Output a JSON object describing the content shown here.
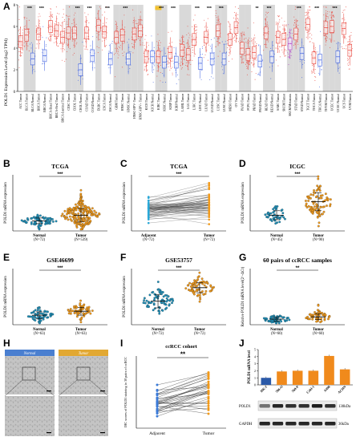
{
  "panels": {
    "A": {
      "label": "A",
      "ylabel": "POLD1 Expression Level (log2 TPM)"
    },
    "B": {
      "label": "B",
      "title": "TCGA",
      "ylabel": "POLD1 mRNA expression"
    },
    "C": {
      "label": "C",
      "title": "TCGA",
      "ylabel": "POLD1 mRNA expression"
    },
    "D": {
      "label": "D",
      "title": "ICGC",
      "ylabel": "POLD1 mRNA expression"
    },
    "E": {
      "label": "E",
      "title": "GSE46699",
      "ylabel": "POLD1 mRNA expression"
    },
    "F": {
      "label": "F",
      "title": "GSE53757",
      "ylabel": "POLD1 mRNA expression"
    },
    "G": {
      "label": "G",
      "title": "60 pairs of ccRCC samples",
      "ylabel": "Relative POLD1 mRNA level(2^-ΔCt)"
    },
    "H": {
      "label": "H",
      "normal": "Normal",
      "tumor": "Tumor"
    },
    "I": {
      "label": "I",
      "title": "ccRCC cohort",
      "ylabel": "IHC scores of POLD1 staining in 30 pairs of ccRCC"
    },
    "J": {
      "label": "J",
      "ylabel": "POLD1 mRNA level",
      "kda130": "130kDa",
      "kda36": "36kDa"
    }
  },
  "colors": {
    "tumor_red": "#e8453c",
    "normal_blue": "#3c5fe0",
    "adjacent_cyan": "#2aa8d8",
    "tumor_orange": "#f29a1a",
    "dot_teal": "#1e8fb8",
    "bar_orange": "#f08a1c",
    "bar_blue": "#2b5aa8",
    "shade": "#d9d9d9",
    "skcm_purple": "#b040c8"
  },
  "chart_data": [
    {
      "panel": "A",
      "type": "box",
      "ylabel": "POLD1 Expression Level (log2 TPM)",
      "ylim": [
        0,
        8
      ],
      "categories": [
        "ACC.Tumor",
        "BLCA.Tumor",
        "BLCA.Normal",
        "BRCA.Tumor",
        "BRCA.Normal",
        "BRCA-Basal.Tumor",
        "BRCA-Her2.Tumor",
        "BRCA-Luminal.Tumor",
        "CESC.Tumor",
        "CHOL.Tumor",
        "CHOL.Normal",
        "COAD.Tumor",
        "COAD.Normal",
        "DLBC.Tumor",
        "ESCA.Tumor",
        "ESCA.Normal",
        "GBM.Tumor",
        "HNSC.Tumor",
        "HNSC.Normal",
        "HNSC-HPV-.Tumor",
        "HNSC-HPV+.Tumor",
        "KICH.Tumor",
        "KICH.Normal",
        "KIRC.Tumor",
        "KIRC.Normal",
        "KIRP.Tumor",
        "KIRP.Normal",
        "LAML.Tumor",
        "LGG.Tumor",
        "LIHC.Tumor",
        "LIHC.Normal",
        "LUAD.Tumor",
        "LUAD.Normal",
        "LUSC.Tumor",
        "LUSC.Normal",
        "MESO.Tumor",
        "OV.Tumor",
        "PAAD.Tumor",
        "PCPG.Tumor",
        "PRAD.Tumor",
        "PRAD.Normal",
        "READ.Tumor",
        "READ.Normal",
        "SARC.Tumor",
        "SKCM.Tumor",
        "SKCM.Metastasis",
        "STAD.Tumor",
        "STAD.Normal",
        "TGCT.Tumor",
        "THCA.Tumor",
        "THCA.Normal",
        "THYM.Tumor",
        "UCEC.Tumor",
        "UCEC.Normal",
        "UCS.Tumor",
        "UVM.Tumor"
      ],
      "medians": [
        4.6,
        5.2,
        3.0,
        5.3,
        3.3,
        6.0,
        5.6,
        5.0,
        5.4,
        5.4,
        2.0,
        5.4,
        3.3,
        6.1,
        5.5,
        3.0,
        5.0,
        5.2,
        3.0,
        5.3,
        5.6,
        3.2,
        3.2,
        3.2,
        2.7,
        3.6,
        2.7,
        3.8,
        3.4,
        4.8,
        2.6,
        5.0,
        3.0,
        5.6,
        3.0,
        4.8,
        5.9,
        4.0,
        3.4,
        3.6,
        2.8,
        5.4,
        3.2,
        5.0,
        4.8,
        4.4,
        5.3,
        3.5,
        6.2,
        3.1,
        2.9,
        5.9,
        6.0,
        3.2,
        5.8,
        3.8
      ],
      "significance": [
        "",
        "***",
        "",
        "***",
        "",
        "",
        "",
        "",
        "",
        "***",
        "",
        "***",
        "",
        "",
        "***",
        "",
        "",
        "***",
        "",
        "",
        "",
        "",
        "",
        "***",
        "",
        "***",
        "",
        "",
        "",
        "***",
        "",
        "***",
        "",
        "***",
        "",
        "",
        "",
        "",
        "",
        "**",
        "",
        "***",
        "",
        "",
        "",
        "",
        "***",
        "",
        "",
        "***",
        "",
        "",
        "***",
        "",
        "",
        ""
      ],
      "highlight": "KIRC.Tumor"
    },
    {
      "panel": "B",
      "type": "scatter",
      "title": "TCGA",
      "ylabel": "POLD1 mRNA expression",
      "groups": [
        {
          "name": "Normal",
          "n": "(N=72)"
        },
        {
          "name": "Tumor",
          "n": "(N=539)"
        }
      ],
      "significance": "***"
    },
    {
      "panel": "C",
      "type": "paired",
      "title": "TCGA",
      "ylabel": "POLD1 mRNA expression",
      "groups": [
        {
          "name": "Adjacent",
          "n": "(N=72)"
        },
        {
          "name": "Tumor",
          "n": "(N=72)"
        }
      ],
      "significance": "***"
    },
    {
      "panel": "D",
      "type": "scatter",
      "title": "ICGC",
      "ylabel": "POLD1 mRNA expression",
      "groups": [
        {
          "name": "Normal",
          "n": "(N=45)"
        },
        {
          "name": "Tumor",
          "n": "(N=90)"
        }
      ],
      "significance": "***"
    },
    {
      "panel": "E",
      "type": "scatter",
      "title": "GSE46699",
      "ylabel": "POLD1 mRNA expression",
      "groups": [
        {
          "name": "Normal",
          "n": "(N=63)"
        },
        {
          "name": "Tumor",
          "n": "(N=63)"
        }
      ],
      "significance": "***"
    },
    {
      "panel": "F",
      "type": "scatter",
      "title": "GSE53757",
      "ylabel": "POLD1 mRNA expression",
      "groups": [
        {
          "name": "Normal",
          "n": "(N=72)"
        },
        {
          "name": "Tumor",
          "n": "(N=72)"
        }
      ],
      "significance": "***"
    },
    {
      "panel": "G",
      "type": "scatter",
      "title": "60 pairs of ccRCC samples",
      "ylabel": "Relative POLD1 mRNA level(2^-ΔCt)",
      "groups": [
        {
          "name": "Normal",
          "n": "(N=60)"
        },
        {
          "name": "Tumor",
          "n": "(N=60)"
        }
      ],
      "significance": "**"
    },
    {
      "panel": "I",
      "type": "paired",
      "title": "ccRCC cohort",
      "ylabel": "IHC scores of POLD1 staining in 30 pairs of ccRCC",
      "groups": [
        {
          "name": "Adjacent"
        },
        {
          "name": "Tumor"
        }
      ],
      "significance": "**"
    },
    {
      "panel": "J",
      "type": "bar",
      "ylabel": "POLD1 mRNA level",
      "categories": [
        "HK-2",
        "786-O",
        "769-P",
        "Caki-1",
        "A498",
        "ACHN"
      ],
      "values": [
        1.0,
        1.9,
        2.0,
        2.0,
        4.1,
        2.2
      ],
      "ylim": [
        0,
        5
      ],
      "blots": [
        "POLD1",
        "GAPDH"
      ],
      "blot_sizes": [
        "130kDa",
        "36kDa"
      ]
    }
  ]
}
